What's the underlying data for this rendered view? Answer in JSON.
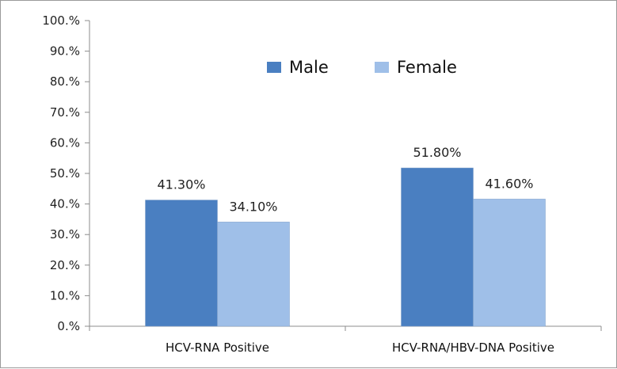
{
  "chart_data": {
    "type": "bar",
    "title": "",
    "xlabel": "",
    "ylabel": "",
    "ylim": [
      0,
      100
    ],
    "yticks": [
      {
        "value": 0,
        "label": "0.%"
      },
      {
        "value": 10,
        "label": "10.%"
      },
      {
        "value": 20,
        "label": "20.%"
      },
      {
        "value": 30,
        "label": "30.%"
      },
      {
        "value": 40,
        "label": "40.%"
      },
      {
        "value": 50,
        "label": "50.%"
      },
      {
        "value": 60,
        "label": "60.%"
      },
      {
        "value": 70,
        "label": "70.%"
      },
      {
        "value": 80,
        "label": "80.%"
      },
      {
        "value": 90,
        "label": "90.%"
      },
      {
        "value": 100,
        "label": "100.%"
      }
    ],
    "categories": [
      "HCV-RNA Positive",
      "HCV-RNA/HBV-DNA Positive"
    ],
    "series": [
      {
        "name": "Male",
        "color": "#4a7fc1",
        "values": [
          41.3,
          51.8
        ],
        "labels": [
          "41.30%",
          "51.80%"
        ]
      },
      {
        "name": "Female",
        "color": "#9fbfe8",
        "values": [
          34.1,
          41.6
        ],
        "labels": [
          "34.10%",
          "41.60%"
        ]
      }
    ],
    "legend_position": "top-center",
    "grid": false
  }
}
